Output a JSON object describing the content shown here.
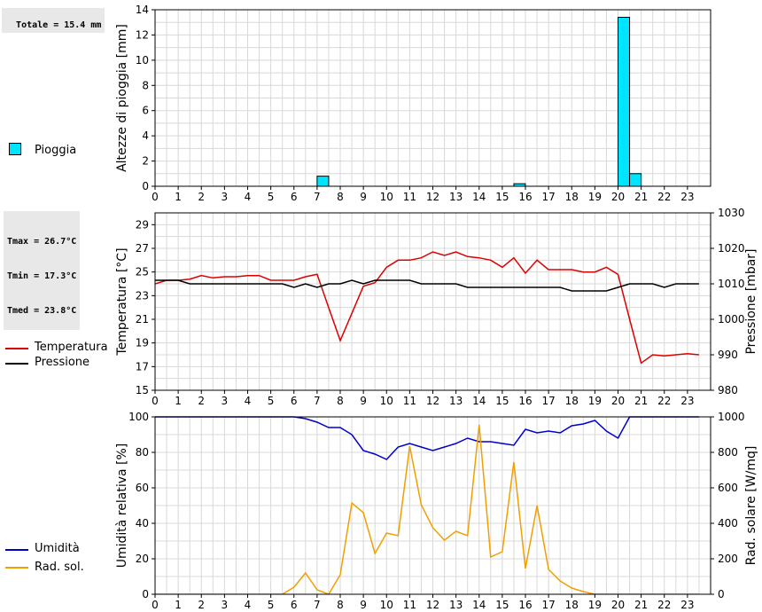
{
  "info": {
    "total_rain": "Totale = 15.4 mm",
    "tmax": "Tmax = 26.7°C",
    "tmin": "Tmin = 17.3°C",
    "tmed": "Tmed = 23.8°C"
  },
  "colors": {
    "rain": "#00e5ff",
    "temperature": "#dd0000",
    "pressure": "#000000",
    "humidity": "#0000cc",
    "radiation": "#f0a000",
    "grid": "#d8d8d8"
  },
  "legends": {
    "rain": "Pioggia",
    "temperature": "Temperatura",
    "pressure": "Pressione",
    "humidity": "Umidità",
    "radiation": "Rad. sol."
  },
  "chart_data": [
    {
      "type": "bar",
      "ylabel": "Altezze di pioggia [mm]",
      "xlim": [
        0,
        24
      ],
      "ylim": [
        0,
        14
      ],
      "yticks": [
        0,
        2,
        4,
        6,
        8,
        10,
        12,
        14
      ],
      "xticks": [
        0,
        1,
        2,
        3,
        4,
        5,
        6,
        7,
        8,
        9,
        10,
        11,
        12,
        13,
        14,
        15,
        16,
        17,
        18,
        19,
        20,
        21,
        22,
        23
      ],
      "grid": true,
      "legend": "left",
      "series": [
        {
          "name": "Pioggia",
          "bars": [
            {
              "x": 7.0,
              "value": 0.8
            },
            {
              "x": 15.5,
              "value": 0.2
            },
            {
              "x": 20.0,
              "value": 13.4
            },
            {
              "x": 20.5,
              "value": 1.0
            }
          ]
        }
      ]
    },
    {
      "type": "line",
      "ylabel": "Temperatura [°C]",
      "y2label": "Pressione [mbar]",
      "xlim": [
        0,
        24
      ],
      "ylim": [
        15,
        30
      ],
      "y2lim": [
        980,
        1030
      ],
      "yticks": [
        15,
        17,
        19,
        21,
        23,
        25,
        27,
        29
      ],
      "y2ticks": [
        980,
        990,
        1000,
        1010,
        1020,
        1030
      ],
      "xticks": [
        0,
        1,
        2,
        3,
        4,
        5,
        6,
        7,
        8,
        9,
        10,
        11,
        12,
        13,
        14,
        15,
        16,
        17,
        18,
        19,
        20,
        21,
        22,
        23
      ],
      "grid": true,
      "legend": "left",
      "series": [
        {
          "name": "Temperatura",
          "axis": "left",
          "x": [
            0,
            0.5,
            1,
            1.5,
            2,
            2.5,
            3,
            3.5,
            4,
            4.5,
            5,
            5.5,
            6,
            6.5,
            7,
            7.5,
            8,
            8.5,
            9,
            9.5,
            10,
            10.5,
            11,
            11.5,
            12,
            12.5,
            13,
            13.5,
            14,
            14.5,
            15,
            15.5,
            16,
            16.5,
            17,
            17.5,
            18,
            18.5,
            19,
            19.5,
            20,
            20.5,
            21,
            21.5,
            22,
            22.5,
            23,
            23.5
          ],
          "y": [
            24.0,
            24.3,
            24.3,
            24.4,
            24.7,
            24.5,
            24.6,
            24.6,
            24.7,
            24.7,
            24.3,
            24.3,
            24.3,
            24.6,
            24.8,
            22.0,
            19.2,
            21.5,
            23.8,
            24.1,
            25.4,
            26.0,
            26.0,
            26.2,
            26.7,
            26.4,
            26.7,
            26.3,
            26.2,
            26.0,
            25.4,
            26.2,
            24.9,
            26.0,
            25.2,
            25.2,
            25.2,
            25.0,
            25.0,
            25.4,
            24.8,
            21.0,
            17.3,
            18.0,
            17.9,
            18.0,
            18.1,
            18.0
          ]
        },
        {
          "name": "Pressione",
          "axis": "right",
          "x": [
            0,
            0.5,
            1,
            1.5,
            2,
            2.5,
            3,
            3.5,
            4,
            4.5,
            5,
            5.5,
            6,
            6.5,
            7,
            7.5,
            8,
            8.5,
            9,
            9.5,
            10,
            10.5,
            11,
            11.5,
            12,
            12.5,
            13,
            13.5,
            14,
            14.5,
            15,
            15.5,
            16,
            16.5,
            17,
            17.5,
            18,
            18.5,
            19,
            19.5,
            20,
            20.5,
            21,
            21.5,
            22,
            22.5,
            23,
            23.5
          ],
          "y": [
            1011,
            1011,
            1011,
            1010,
            1010,
            1010,
            1010,
            1010,
            1010,
            1010,
            1010,
            1010,
            1009,
            1010,
            1009,
            1010,
            1010,
            1011,
            1010,
            1011,
            1011,
            1011,
            1011,
            1010,
            1010,
            1010,
            1010,
            1009,
            1009,
            1009,
            1009,
            1009,
            1009,
            1009,
            1009,
            1009,
            1008,
            1008,
            1008,
            1008,
            1009,
            1010,
            1010,
            1010,
            1009,
            1010,
            1010,
            1010
          ]
        }
      ]
    },
    {
      "type": "line",
      "ylabel": "Umidità relativa [%]",
      "y2label": "Rad. solare [W/mq]",
      "xlim": [
        0,
        24
      ],
      "ylim": [
        0,
        100
      ],
      "y2lim": [
        0,
        1000
      ],
      "yticks": [
        0,
        20,
        40,
        60,
        80,
        100
      ],
      "y2ticks": [
        0,
        200,
        400,
        600,
        800,
        1000
      ],
      "xticks": [
        0,
        1,
        2,
        3,
        4,
        5,
        6,
        7,
        8,
        9,
        10,
        11,
        12,
        13,
        14,
        15,
        16,
        17,
        18,
        19,
        20,
        21,
        22,
        23
      ],
      "grid": true,
      "legend": "left",
      "series": [
        {
          "name": "Umidità",
          "axis": "left",
          "x": [
            0,
            0.5,
            1,
            1.5,
            2,
            2.5,
            3,
            3.5,
            4,
            4.5,
            5,
            5.5,
            6,
            6.5,
            7,
            7.5,
            8,
            8.5,
            9,
            9.5,
            10,
            10.5,
            11,
            11.5,
            12,
            12.5,
            13,
            13.5,
            14,
            14.5,
            15,
            15.5,
            16,
            16.5,
            17,
            17.5,
            18,
            18.5,
            19,
            19.5,
            20,
            20.5,
            21,
            21.5,
            22,
            22.5,
            23,
            23.5
          ],
          "y": [
            100,
            100,
            100,
            100,
            100,
            100,
            100,
            100,
            100,
            100,
            100,
            100,
            100,
            99,
            97,
            94,
            94,
            90,
            81,
            79,
            76,
            83,
            85,
            83,
            81,
            83,
            85,
            88,
            86,
            86,
            85,
            84,
            93,
            91,
            92,
            91,
            95,
            96,
            98,
            92,
            88,
            100,
            100,
            100,
            100,
            100,
            100,
            100
          ]
        },
        {
          "name": "Rad. sol.",
          "axis": "right",
          "x": [
            0,
            0.5,
            1,
            1.5,
            2,
            2.5,
            3,
            3.5,
            4,
            4.5,
            5,
            5.5,
            6,
            6.5,
            7,
            7.5,
            8,
            8.5,
            9,
            9.5,
            10,
            10.5,
            11,
            11.5,
            12,
            12.5,
            13,
            13.5,
            14,
            14.5,
            15,
            15.5,
            16,
            16.5,
            17,
            17.5,
            18,
            18.5,
            19,
            19.5,
            20,
            20.5,
            21,
            21.5,
            22,
            22.5,
            23,
            23.5
          ],
          "y": [
            0,
            0,
            0,
            0,
            0,
            0,
            0,
            0,
            0,
            0,
            0,
            0,
            40,
            120,
            25,
            0,
            110,
            515,
            460,
            230,
            345,
            330,
            835,
            505,
            375,
            305,
            355,
            330,
            955,
            210,
            240,
            745,
            145,
            500,
            140,
            75,
            35,
            15,
            0,
            0,
            0,
            0,
            0,
            0,
            0,
            0,
            0,
            0
          ]
        }
      ]
    }
  ]
}
